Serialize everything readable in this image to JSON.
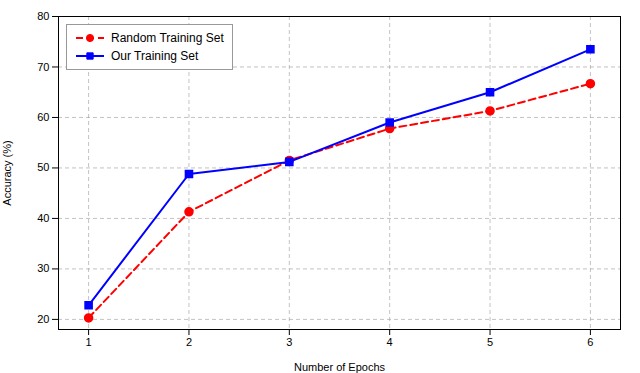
{
  "chart_data": {
    "type": "line",
    "xlabel": "Number of Epochs",
    "ylabel": "Accuracy (%)",
    "x": [
      1,
      2,
      3,
      4,
      5,
      6
    ],
    "series": [
      {
        "name": "Random Training Set",
        "color": "#ff0000",
        "values": [
          20.3,
          41.3,
          51.5,
          57.8,
          61.3,
          66.7
        ],
        "marker": "circle",
        "line_style": "dashed"
      },
      {
        "name": "Our Training Set",
        "color": "#0000ff",
        "values": [
          22.8,
          48.8,
          51.2,
          59.0,
          65.0,
          73.5
        ],
        "marker": "square",
        "line_style": "solid"
      }
    ],
    "xlim": [
      0.7,
      6.3
    ],
    "xticks": [
      1,
      2,
      3,
      4,
      5,
      6
    ],
    "ylim": [
      18,
      80
    ],
    "yticks": [
      20,
      30,
      40,
      50,
      60,
      70,
      80
    ],
    "grid": true,
    "legend": "upper left"
  }
}
